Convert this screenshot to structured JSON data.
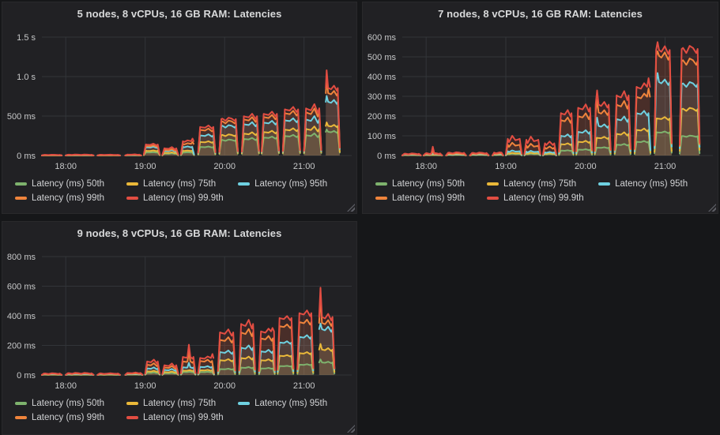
{
  "colors": {
    "page_bg": "#161719",
    "panel_bg": "#212124",
    "grid": "#323539",
    "tick_text": "#c7c8c9",
    "title_text": "#d8d9da"
  },
  "chart_data": {
    "type": "area",
    "grid": true,
    "legend_position": "bottom-left",
    "time_domain": {
      "start": "17:42",
      "end": "21:36"
    },
    "x_ticks": [
      "18:00",
      "19:00",
      "20:00",
      "21:00"
    ],
    "series": [
      {
        "key": "p50",
        "label": "Latency (ms) 50th",
        "color": "#7EB26D"
      },
      {
        "key": "p75",
        "label": "Latency (ms) 75th",
        "color": "#EAB839"
      },
      {
        "key": "p95",
        "label": "Latency (ms) 95th",
        "color": "#6ED0E0"
      },
      {
        "key": "p99",
        "label": "Latency (ms) 99th",
        "color": "#EF843C"
      },
      {
        "key": "p999",
        "label": "Latency (ms) 99.9th",
        "color": "#E24D42"
      }
    ],
    "panels": [
      {
        "title": "5 nodes, 8 vCPUs, 16 GB RAM: Latencies",
        "y_unit": "ms",
        "y_max": 1500,
        "y_ticks": [
          {
            "v": 0,
            "label": "0 ms"
          },
          {
            "v": 500,
            "label": "500 ms"
          },
          {
            "v": 1000,
            "label": "1.0 s"
          },
          {
            "v": 1500,
            "label": "1.5 s"
          }
        ],
        "bursts": [
          {
            "start": "17:42",
            "end": "17:57",
            "levels": {
              "p50": 2,
              "p75": 3,
              "p95": 5,
              "p99": 6,
              "p999": 8
            },
            "amp": 0.3,
            "humps": 2
          },
          {
            "start": "18:00",
            "end": "18:21",
            "levels": {
              "p50": 2,
              "p75": 3,
              "p95": 5,
              "p99": 7,
              "p999": 10
            },
            "amp": 0.3,
            "humps": 3
          },
          {
            "start": "18:24",
            "end": "18:41",
            "levels": {
              "p50": 2,
              "p75": 3,
              "p95": 5,
              "p99": 6,
              "p999": 9
            },
            "amp": 0.25,
            "humps": 2
          },
          {
            "start": "18:45",
            "end": "18:57",
            "levels": {
              "p50": 3,
              "p75": 4,
              "p95": 6,
              "p99": 8,
              "p999": 12
            },
            "amp": 0.25,
            "humps": 2
          },
          {
            "start": "18:59",
            "end": "19:11",
            "levels": {
              "p50": 40,
              "p75": 60,
              "p95": 105,
              "p99": 120,
              "p999": 140
            },
            "amp": 0.08,
            "humps": 2
          },
          {
            "start": "19:13",
            "end": "19:25",
            "levels": {
              "p50": 25,
              "p75": 35,
              "p95": 60,
              "p99": 72,
              "p999": 92
            },
            "amp": 0.18,
            "humps": 2
          },
          {
            "start": "19:27",
            "end": "19:37",
            "levels": {
              "p50": 40,
              "p75": 60,
              "p95": 110,
              "p99": 148,
              "p999": 182
            },
            "amp": 0.08,
            "humps": 2,
            "spike": {
              "pos": 0.88,
              "values": {
                "p999": 215,
                "p99": 172
              }
            }
          },
          {
            "start": "19:40",
            "end": "19:53",
            "levels": {
              "p50": 108,
              "p75": 172,
              "p95": 255,
              "p99": 325,
              "p999": 362
            },
            "amp": 0.06,
            "humps": 2
          },
          {
            "start": "19:56",
            "end": "20:10",
            "levels": {
              "p50": 195,
              "p75": 258,
              "p95": 372,
              "p99": 428,
              "p999": 462
            },
            "amp": 0.05,
            "humps": 2
          },
          {
            "start": "20:13",
            "end": "20:26",
            "levels": {
              "p50": 210,
              "p75": 278,
              "p95": 398,
              "p99": 458,
              "p999": 498
            },
            "amp": 0.07,
            "humps": 2
          },
          {
            "start": "20:28",
            "end": "20:41",
            "levels": {
              "p50": 228,
              "p75": 298,
              "p95": 418,
              "p99": 488,
              "p999": 528
            },
            "amp": 0.06,
            "humps": 2
          },
          {
            "start": "20:44",
            "end": "20:57",
            "levels": {
              "p50": 248,
              "p75": 328,
              "p95": 448,
              "p99": 538,
              "p999": 585
            },
            "amp": 0.06,
            "humps": 2
          },
          {
            "start": "21:00",
            "end": "21:13",
            "levels": {
              "p50": 258,
              "p75": 338,
              "p95": 458,
              "p99": 548,
              "p999": 598
            },
            "amp": 0.1,
            "humps": 2
          },
          {
            "start": "21:16",
            "end": "21:27",
            "levels": {
              "p50": 300,
              "p75": 375,
              "p95": 680,
              "p99": 790,
              "p999": 855
            },
            "amp": 0.04,
            "humps": 2,
            "spike": {
              "pos": 0.1,
              "values": {
                "p50": 330,
                "p75": 420,
                "p95": 755,
                "p99": 975,
                "p999": 1080
              }
            }
          }
        ]
      },
      {
        "title": "7 nodes, 8 vCPUs, 16 GB RAM: Latencies",
        "y_unit": "ms",
        "y_max": 600,
        "y_ticks": [
          {
            "v": 0,
            "label": "0 ms"
          },
          {
            "v": 100,
            "label": "100 ms"
          },
          {
            "v": 200,
            "label": "200 ms"
          },
          {
            "v": 300,
            "label": "300 ms"
          },
          {
            "v": 400,
            "label": "400 ms"
          },
          {
            "v": 500,
            "label": "500 ms"
          },
          {
            "v": 600,
            "label": "600 ms"
          }
        ],
        "bursts": [
          {
            "start": "17:42",
            "end": "17:56",
            "levels": {
              "p50": 2,
              "p75": 3,
              "p95": 4,
              "p99": 6,
              "p999": 9
            },
            "amp": 0.3,
            "humps": 2
          },
          {
            "start": "17:58",
            "end": "18:12",
            "levels": {
              "p50": 2,
              "p75": 3,
              "p95": 5,
              "p99": 7,
              "p999": 11
            },
            "amp": 0.3,
            "humps": 2,
            "spike": {
              "pos": 0.5,
              "values": {
                "p999": 45,
                "p99": 24,
                "p95": 13
              }
            }
          },
          {
            "start": "18:15",
            "end": "18:30",
            "levels": {
              "p50": 3,
              "p75": 4,
              "p95": 6,
              "p99": 9,
              "p999": 14
            },
            "amp": 0.25,
            "humps": 2
          },
          {
            "start": "18:33",
            "end": "18:47",
            "levels": {
              "p50": 3,
              "p75": 4,
              "p95": 6,
              "p99": 9,
              "p999": 13
            },
            "amp": 0.25,
            "humps": 2
          },
          {
            "start": "18:50",
            "end": "18:58",
            "levels": {
              "p50": 3,
              "p75": 5,
              "p95": 7,
              "p99": 10,
              "p999": 15
            },
            "amp": 0.25,
            "humps": 2
          },
          {
            "start": "19:00",
            "end": "19:12",
            "levels": {
              "p50": 8,
              "p75": 12,
              "p95": 22,
              "p99": 55,
              "p999": 85
            },
            "amp": 0.2,
            "humps": 3
          },
          {
            "start": "19:14",
            "end": "19:26",
            "levels": {
              "p50": 8,
              "p75": 12,
              "p95": 20,
              "p99": 50,
              "p999": 80
            },
            "amp": 0.22,
            "humps": 3
          },
          {
            "start": "19:28",
            "end": "19:38",
            "levels": {
              "p50": 7,
              "p75": 10,
              "p95": 16,
              "p99": 40,
              "p999": 62
            },
            "amp": 0.2,
            "humps": 2
          },
          {
            "start": "19:40",
            "end": "19:51",
            "levels": {
              "p50": 25,
              "p75": 58,
              "p95": 100,
              "p99": 180,
              "p999": 215
            },
            "amp": 0.08,
            "humps": 2
          },
          {
            "start": "19:53",
            "end": "20:05",
            "levels": {
              "p50": 30,
              "p75": 70,
              "p95": 120,
              "p99": 200,
              "p999": 242
            },
            "amp": 0.08,
            "humps": 2
          },
          {
            "start": "20:07",
            "end": "20:19",
            "levels": {
              "p50": 40,
              "p75": 90,
              "p95": 150,
              "p99": 218,
              "p999": 258
            },
            "amp": 0.06,
            "humps": 2,
            "spike": {
              "pos": 0.15,
              "values": {
                "p999": 330,
                "p99": 282,
                "p95": 192
              }
            }
          },
          {
            "start": "20:22",
            "end": "20:34",
            "levels": {
              "p50": 55,
              "p75": 110,
              "p95": 185,
              "p99": 258,
              "p999": 305
            },
            "amp": 0.08,
            "humps": 2
          },
          {
            "start": "20:37",
            "end": "20:49",
            "levels": {
              "p50": 70,
              "p75": 130,
              "p95": 215,
              "p99": 298,
              "p999": 348
            },
            "amp": 0.06,
            "humps": 2,
            "spike": {
              "pos": 0.88,
              "values": {
                "p999": 392,
                "p99": 340
              }
            }
          },
          {
            "start": "20:52",
            "end": "21:05",
            "levels": {
              "p50": 118,
              "p75": 188,
              "p95": 372,
              "p99": 505,
              "p999": 535
            },
            "amp": 0.04,
            "humps": 2,
            "spike": {
              "pos": 0.18,
              "values": {
                "p999": 575,
                "p99": 528,
                "p95": 418
              }
            }
          },
          {
            "start": "21:11",
            "end": "21:26",
            "levels": {
              "p50": 98,
              "p75": 235,
              "p95": 362,
              "p99": 478,
              "p999": 540
            },
            "amp": 0.04,
            "humps": 2
          }
        ]
      },
      {
        "title": "9 nodes, 8 vCPUs, 16 GB RAM: Latencies",
        "y_unit": "ms",
        "y_max": 800,
        "y_ticks": [
          {
            "v": 0,
            "label": "0 ms"
          },
          {
            "v": 200,
            "label": "200 ms"
          },
          {
            "v": 400,
            "label": "400 ms"
          },
          {
            "v": 600,
            "label": "600 ms"
          },
          {
            "v": 800,
            "label": "800 ms"
          }
        ],
        "bursts": [
          {
            "start": "17:42",
            "end": "17:57",
            "levels": {
              "p50": 2,
              "p75": 3,
              "p95": 5,
              "p99": 7,
              "p999": 10
            },
            "amp": 0.3,
            "humps": 2
          },
          {
            "start": "18:00",
            "end": "18:21",
            "levels": {
              "p50": 2,
              "p75": 3,
              "p95": 5,
              "p99": 8,
              "p999": 12
            },
            "amp": 0.3,
            "humps": 3
          },
          {
            "start": "18:24",
            "end": "18:41",
            "levels": {
              "p50": 2,
              "p75": 3,
              "p95": 5,
              "p99": 7,
              "p999": 10
            },
            "amp": 0.25,
            "humps": 2
          },
          {
            "start": "18:45",
            "end": "18:58",
            "levels": {
              "p50": 3,
              "p75": 4,
              "p95": 6,
              "p99": 9,
              "p999": 14
            },
            "amp": 0.25,
            "humps": 2
          },
          {
            "start": "19:00",
            "end": "19:11",
            "levels": {
              "p50": 15,
              "p75": 25,
              "p95": 45,
              "p99": 70,
              "p999": 92
            },
            "amp": 0.15,
            "humps": 2
          },
          {
            "start": "19:13",
            "end": "19:25",
            "levels": {
              "p50": 12,
              "p75": 20,
              "p95": 35,
              "p99": 52,
              "p999": 66
            },
            "amp": 0.2,
            "humps": 2
          },
          {
            "start": "19:27",
            "end": "19:38",
            "levels": {
              "p50": 20,
              "p75": 30,
              "p95": 52,
              "p99": 92,
              "p999": 122
            },
            "amp": 0.1,
            "humps": 2,
            "spike": {
              "pos": 0.55,
              "values": {
                "p999": 205,
                "p99": 158,
                "p95": 82
              }
            }
          },
          {
            "start": "19:40",
            "end": "19:52",
            "levels": {
              "p50": 20,
              "p75": 32,
              "p95": 55,
              "p99": 95,
              "p999": 115
            },
            "amp": 0.1,
            "humps": 2,
            "spike": {
              "pos": 0.9,
              "values": {
                "p999": 142
              }
            }
          },
          {
            "start": "19:55",
            "end": "20:08",
            "levels": {
              "p50": 40,
              "p75": 100,
              "p95": 155,
              "p99": 238,
              "p999": 288
            },
            "amp": 0.08,
            "humps": 2
          },
          {
            "start": "20:11",
            "end": "20:23",
            "levels": {
              "p50": 50,
              "p75": 115,
              "p95": 185,
              "p99": 288,
              "p999": 345
            },
            "amp": 0.09,
            "humps": 2
          },
          {
            "start": "20:26",
            "end": "20:38",
            "levels": {
              "p50": 45,
              "p75": 100,
              "p95": 160,
              "p99": 248,
              "p999": 295
            },
            "amp": 0.07,
            "humps": 2,
            "spike": {
              "pos": 0.85,
              "values": {
                "p999": 318
              }
            }
          },
          {
            "start": "20:40",
            "end": "20:52",
            "levels": {
              "p50": 60,
              "p75": 130,
              "p95": 220,
              "p99": 330,
              "p999": 385
            },
            "amp": 0.04,
            "humps": 2
          },
          {
            "start": "20:55",
            "end": "21:07",
            "levels": {
              "p50": 70,
              "p75": 148,
              "p95": 258,
              "p99": 358,
              "p999": 418
            },
            "amp": 0.05,
            "humps": 2
          },
          {
            "start": "21:11",
            "end": "21:23",
            "levels": {
              "p50": 85,
              "p75": 172,
              "p95": 310,
              "p99": 352,
              "p999": 392
            },
            "amp": 0.06,
            "humps": 2,
            "spike": {
              "pos": 0.12,
              "values": {
                "p50": 105,
                "p75": 210,
                "p95": 348,
                "p99": 532,
                "p999": 590
              }
            }
          }
        ]
      }
    ]
  }
}
